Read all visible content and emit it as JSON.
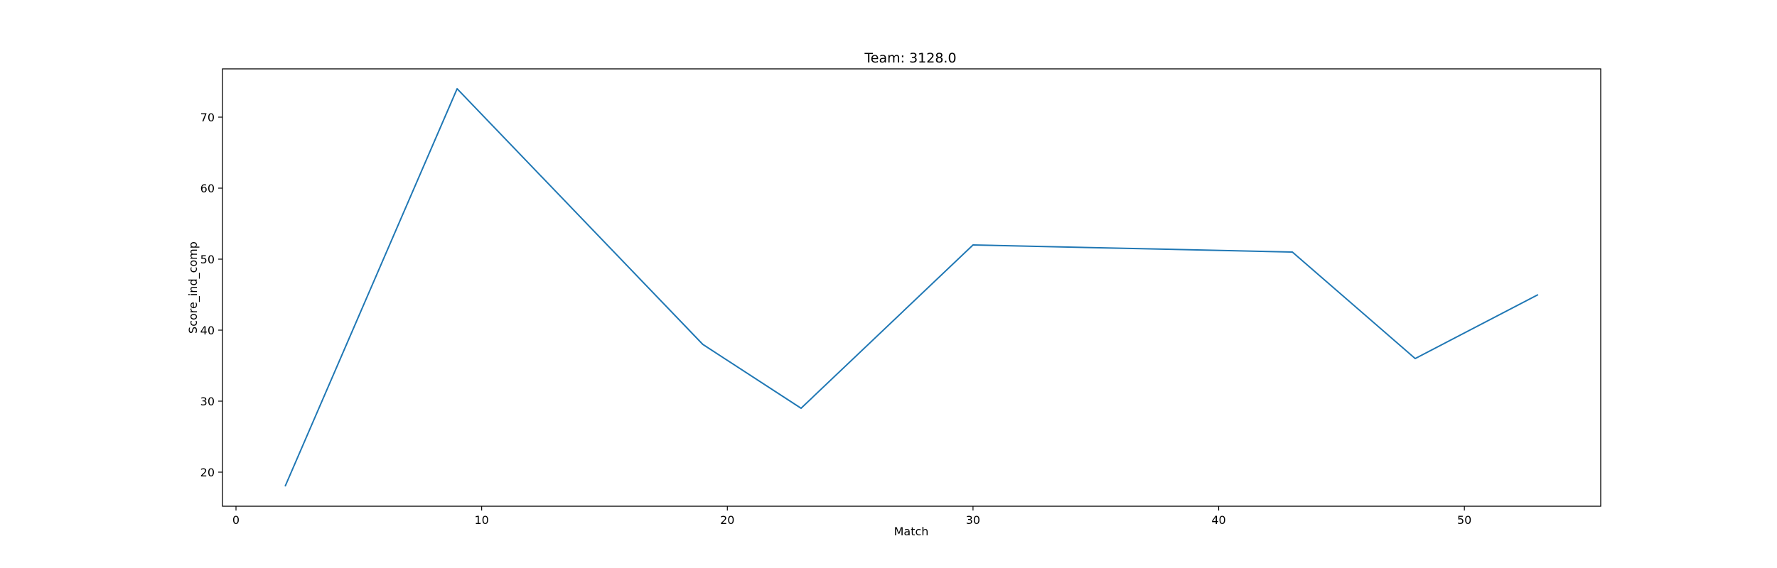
{
  "chart_data": {
    "type": "line",
    "title": "Team: 3128.0",
    "xlabel": "Match",
    "ylabel": "Score_ind_comp",
    "xlim": [
      -0.55,
      55.55
    ],
    "ylim": [
      15.2,
      76.8
    ],
    "xticks": [
      0,
      10,
      20,
      30,
      40,
      50
    ],
    "yticks": [
      20,
      30,
      40,
      50,
      60,
      70
    ],
    "grid": false,
    "legend": "none",
    "series": [
      {
        "color": "#1f77b4",
        "x": [
          2,
          9,
          19,
          23,
          30,
          43,
          48,
          53
        ],
        "y": [
          18,
          74,
          38,
          29,
          52,
          51,
          36,
          45
        ]
      }
    ]
  }
}
